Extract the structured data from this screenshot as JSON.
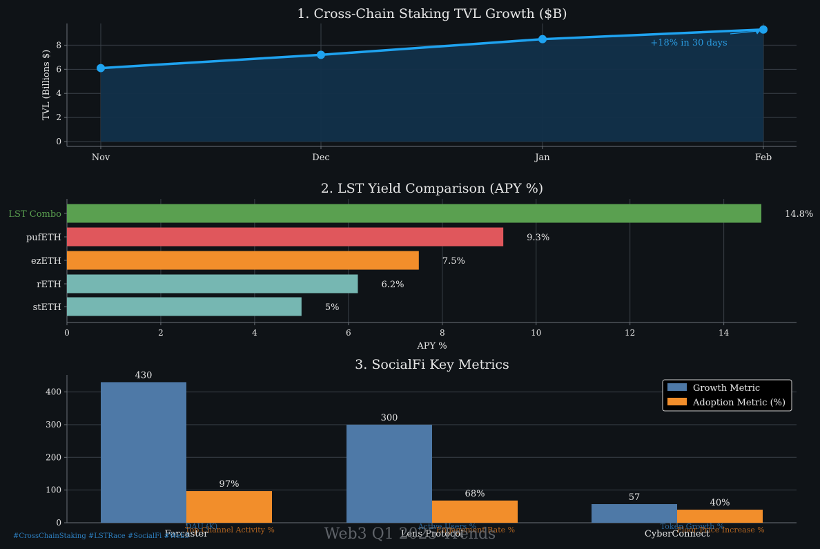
{
  "colors": {
    "background": "#0f1317",
    "text": "#e6e6e6",
    "grid": "#3a4148",
    "axis": "#6b7178",
    "tvl_line": "#1fa3f0",
    "tvl_fill": "#12304a",
    "green": "#5aa050",
    "red": "#e0575c",
    "orange": "#f28e2b",
    "teal": "#76b7b2",
    "steel_blue": "#4e79a7",
    "hashtag": "#2d7fc0",
    "watermark": "#6c7177"
  },
  "page": {
    "watermark": "Web3 Q1 2025 Trends",
    "hashtags": "#CrossChainStaking #LSTRace #SocialFi #Web3"
  },
  "chart_data": [
    {
      "type": "area",
      "title": "1. Cross-Chain Staking TVL Growth ($B)",
      "xlabel": "",
      "ylabel": "TVL (Billions $)",
      "categories": [
        "Nov",
        "Dec",
        "Jan",
        "Feb"
      ],
      "series": [
        {
          "values": [
            6.1,
            7.2,
            8.5,
            9.3
          ]
        }
      ],
      "ylim": [
        -0.4,
        9.8
      ],
      "yticks": [
        0,
        2,
        4,
        6,
        8
      ],
      "grid": true,
      "annotation": {
        "text": "+18% in 30 days",
        "points_to": "Feb"
      }
    },
    {
      "type": "bar",
      "orientation": "horizontal",
      "title": "2. LST Yield Comparison (APY %)",
      "xlabel": "APY %",
      "ylabel": "",
      "categories": [
        "stETH",
        "rETH",
        "ezETH",
        "pufETH",
        "LST Combo"
      ],
      "values": [
        5,
        6.2,
        7.5,
        9.3,
        14.8
      ],
      "value_labels": [
        "5%",
        "6.2%",
        "7.5%",
        "9.3%",
        "14.8%"
      ],
      "bar_colors": [
        "teal",
        "teal",
        "orange",
        "red",
        "green"
      ],
      "highlight_category": "LST Combo",
      "xlim": [
        0,
        15.55
      ],
      "xticks": [
        0,
        2,
        4,
        6,
        8,
        10,
        12,
        14
      ],
      "grid": true
    },
    {
      "type": "bar",
      "title": "3. SocialFi Key Metrics",
      "xlabel": "",
      "ylabel": "",
      "categories": [
        "Farcaster",
        "Lens Protocol",
        "CyberConnect"
      ],
      "series": [
        {
          "name": "Growth Metric",
          "values": [
            430,
            300,
            57
          ],
          "value_labels": [
            "430",
            "300",
            "57"
          ],
          "sublabels": [
            "DAU (K)",
            "Active Users %",
            "Token Growth %"
          ]
        },
        {
          "name": "Adoption Metric (%)",
          "values": [
            97,
            68,
            40
          ],
          "value_labels": [
            "97%",
            "68%",
            "40%"
          ],
          "sublabels": [
            "Top Channel Activity %",
            "Engagement Rate %",
            "Floor Price Increase %"
          ]
        }
      ],
      "ylim": [
        0,
        452
      ],
      "yticks": [
        0,
        100,
        200,
        300,
        400
      ],
      "legend": "top-right",
      "grid": true
    }
  ]
}
